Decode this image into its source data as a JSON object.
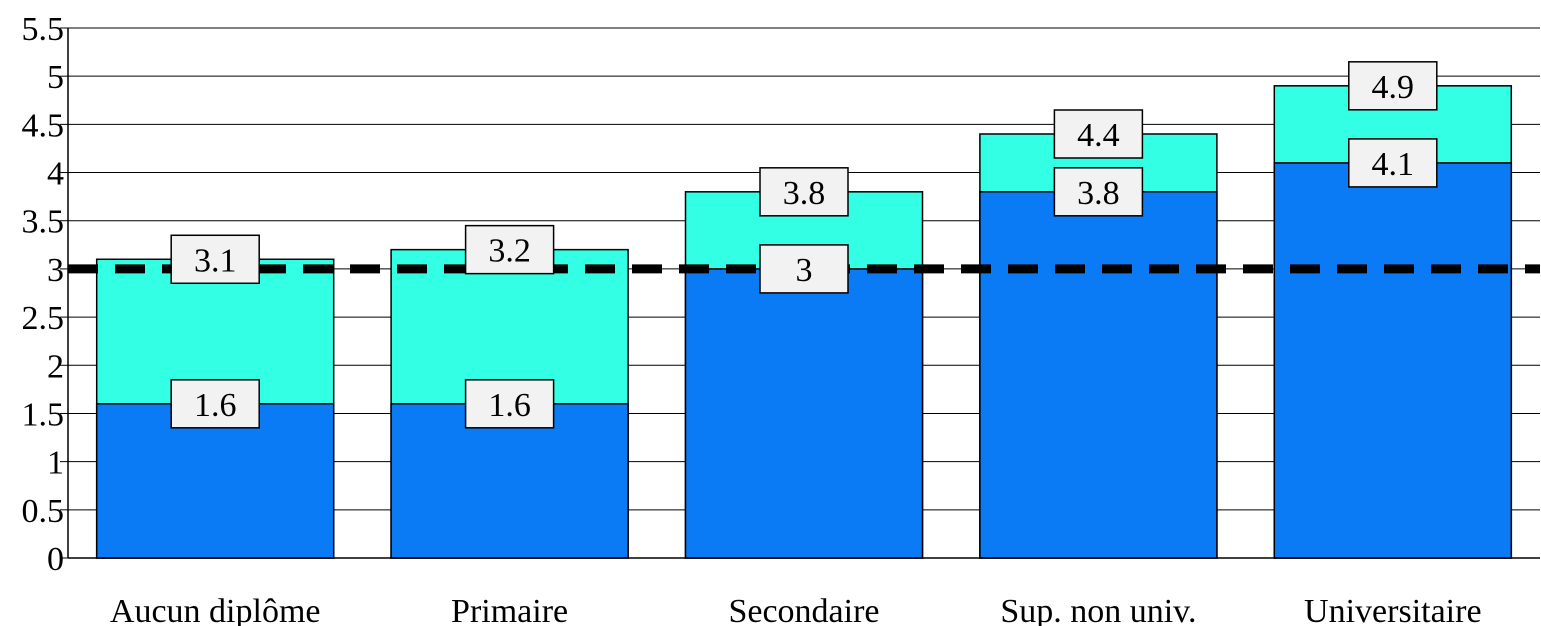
{
  "chart_data": {
    "type": "bar",
    "stacked": "overlay",
    "categories": [
      "Aucun diplôme",
      "Primaire",
      "Secondaire",
      "Sup. non univ.",
      "Universitaire"
    ],
    "series": [
      {
        "values": [
          1.6,
          1.6,
          3.0,
          3.8,
          4.1
        ],
        "color": "#0a7af5"
      },
      {
        "values": [
          3.1,
          3.2,
          3.8,
          4.4,
          4.9
        ],
        "color": "#33ffe4"
      }
    ],
    "reference_line": {
      "value": 3,
      "style": "dashed",
      "color": "#000000"
    },
    "data_labels": {
      "lower": [
        "1.6",
        "1.6",
        "3",
        "3.8",
        "4.1"
      ],
      "upper": [
        "3.1",
        "3.2",
        "3.8",
        "4.4",
        "4.9"
      ]
    },
    "y_ticks": [
      "0",
      "0.5",
      "1",
      "1.5",
      "2",
      "2.5",
      "3",
      "3.5",
      "4",
      "4.5",
      "5",
      "5.5"
    ],
    "ylim": [
      0,
      5.5
    ],
    "grid": true,
    "legend": "none",
    "title": "",
    "xlabel": "",
    "ylabel": ""
  }
}
